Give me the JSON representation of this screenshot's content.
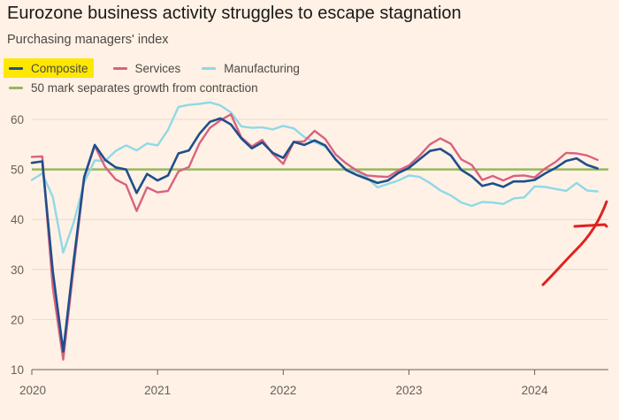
{
  "header": {
    "title": "Eurozone business activity struggles to escape stagnation",
    "subtitle": "Purchasing managers' index"
  },
  "legend": {
    "composite": "Composite",
    "services": "Services",
    "manufacturing": "Manufacturing",
    "reference": "50 mark separates growth from contraction"
  },
  "colors": {
    "background": "#fff1e5",
    "composite": "#1f4e8c",
    "services": "#d9627e",
    "manufacturing": "#8fd9e6",
    "reference": "#96b85e",
    "highlight": "#ffe800",
    "annotation_arrow": "#e0211f"
  },
  "chart_data": {
    "type": "line",
    "x_start": "2020-01",
    "x_frequency": "monthly",
    "x_tick_labels": [
      "2020",
      "2021",
      "2022",
      "2023",
      "2024"
    ],
    "y_tick_labels": [
      "10",
      "20",
      "30",
      "40",
      "50",
      "60"
    ],
    "ylim": [
      10,
      65
    ],
    "reference_line": 50,
    "grid": "horizontal",
    "annotation": "red hand-drawn arrow pointing at latest manufacturing reading",
    "series": [
      {
        "name": "Composite",
        "values": [
          51.3,
          51.6,
          29.7,
          13.6,
          31.9,
          48.5,
          54.9,
          51.9,
          50.4,
          50.0,
          45.3,
          49.1,
          47.8,
          48.8,
          53.2,
          53.8,
          57.1,
          59.5,
          60.2,
          59.0,
          56.2,
          54.2,
          55.4,
          53.3,
          52.3,
          55.5,
          54.9,
          55.8,
          54.8,
          52.0,
          49.9,
          48.9,
          48.1,
          47.3,
          47.8,
          49.3,
          50.3,
          52.0,
          53.7,
          54.1,
          52.8,
          49.9,
          48.6,
          46.7,
          47.2,
          46.5,
          47.6,
          47.6,
          47.9,
          49.2,
          50.3,
          51.7,
          52.2,
          50.9,
          50.2
        ]
      },
      {
        "name": "Services",
        "values": [
          52.5,
          52.6,
          26.4,
          12.0,
          30.5,
          48.3,
          54.7,
          50.5,
          48.0,
          46.9,
          41.7,
          46.4,
          45.4,
          45.7,
          49.6,
          50.5,
          55.2,
          58.3,
          59.8,
          61.0,
          56.4,
          54.6,
          55.9,
          53.1,
          51.1,
          55.5,
          55.6,
          57.7,
          56.1,
          53.0,
          51.2,
          49.8,
          48.8,
          48.6,
          48.5,
          49.8,
          50.8,
          52.7,
          55.0,
          56.2,
          55.1,
          52.0,
          50.9,
          47.9,
          48.7,
          47.8,
          48.7,
          48.8,
          48.4,
          50.2,
          51.5,
          53.3,
          53.2,
          52.8,
          51.9
        ]
      },
      {
        "name": "Manufacturing",
        "values": [
          47.9,
          49.2,
          44.5,
          33.4,
          39.4,
          47.4,
          51.8,
          51.7,
          53.7,
          54.8,
          53.8,
          55.2,
          54.8,
          57.9,
          62.5,
          62.9,
          63.1,
          63.4,
          62.8,
          61.4,
          58.6,
          58.3,
          58.4,
          58.0,
          58.7,
          58.2,
          56.5,
          55.5,
          54.6,
          52.1,
          49.8,
          49.6,
          48.4,
          46.4,
          47.1,
          47.8,
          48.8,
          48.5,
          47.3,
          45.8,
          44.8,
          43.4,
          42.7,
          43.5,
          43.4,
          43.1,
          44.2,
          44.4,
          46.6,
          46.5,
          46.1,
          45.7,
          47.3,
          45.8,
          45.6
        ]
      }
    ]
  }
}
